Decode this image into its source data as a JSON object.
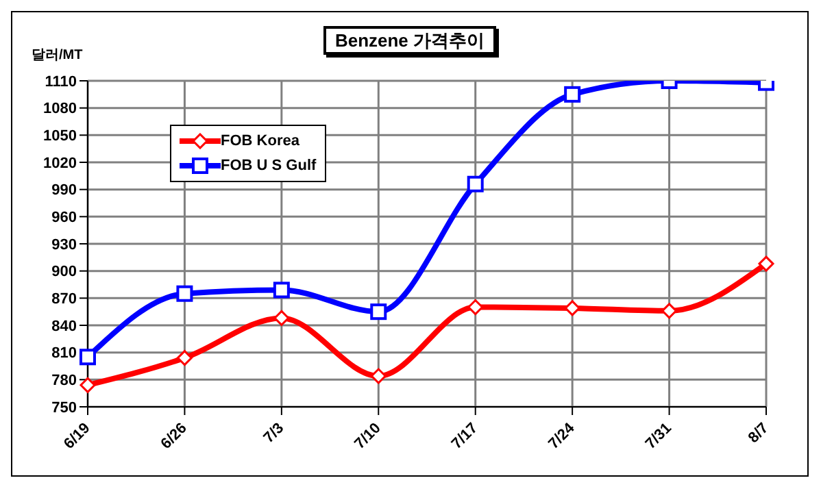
{
  "chart_data": {
    "type": "line",
    "title": "Benzene 가격추이",
    "ylabel": "달러/MT",
    "categories": [
      "6/19",
      "6/26",
      "7/3",
      "7/10",
      "7/17",
      "7/24",
      "7/31",
      "8/7"
    ],
    "series": [
      {
        "name": "FOB Korea",
        "color": "#ff0000",
        "marker": "diamond",
        "values": [
          774,
          804,
          848,
          784,
          860,
          859,
          856,
          908
        ]
      },
      {
        "name": "FOB U S Gulf",
        "color": "#0000ff",
        "marker": "square",
        "values": [
          805,
          875,
          879,
          855,
          996,
          1095,
          1110,
          1108
        ]
      }
    ],
    "ylim": [
      750,
      1110
    ],
    "yticks": [
      750,
      780,
      810,
      840,
      870,
      900,
      930,
      960,
      990,
      1020,
      1050,
      1080,
      1110
    ],
    "grid": true,
    "legend": "top left"
  }
}
